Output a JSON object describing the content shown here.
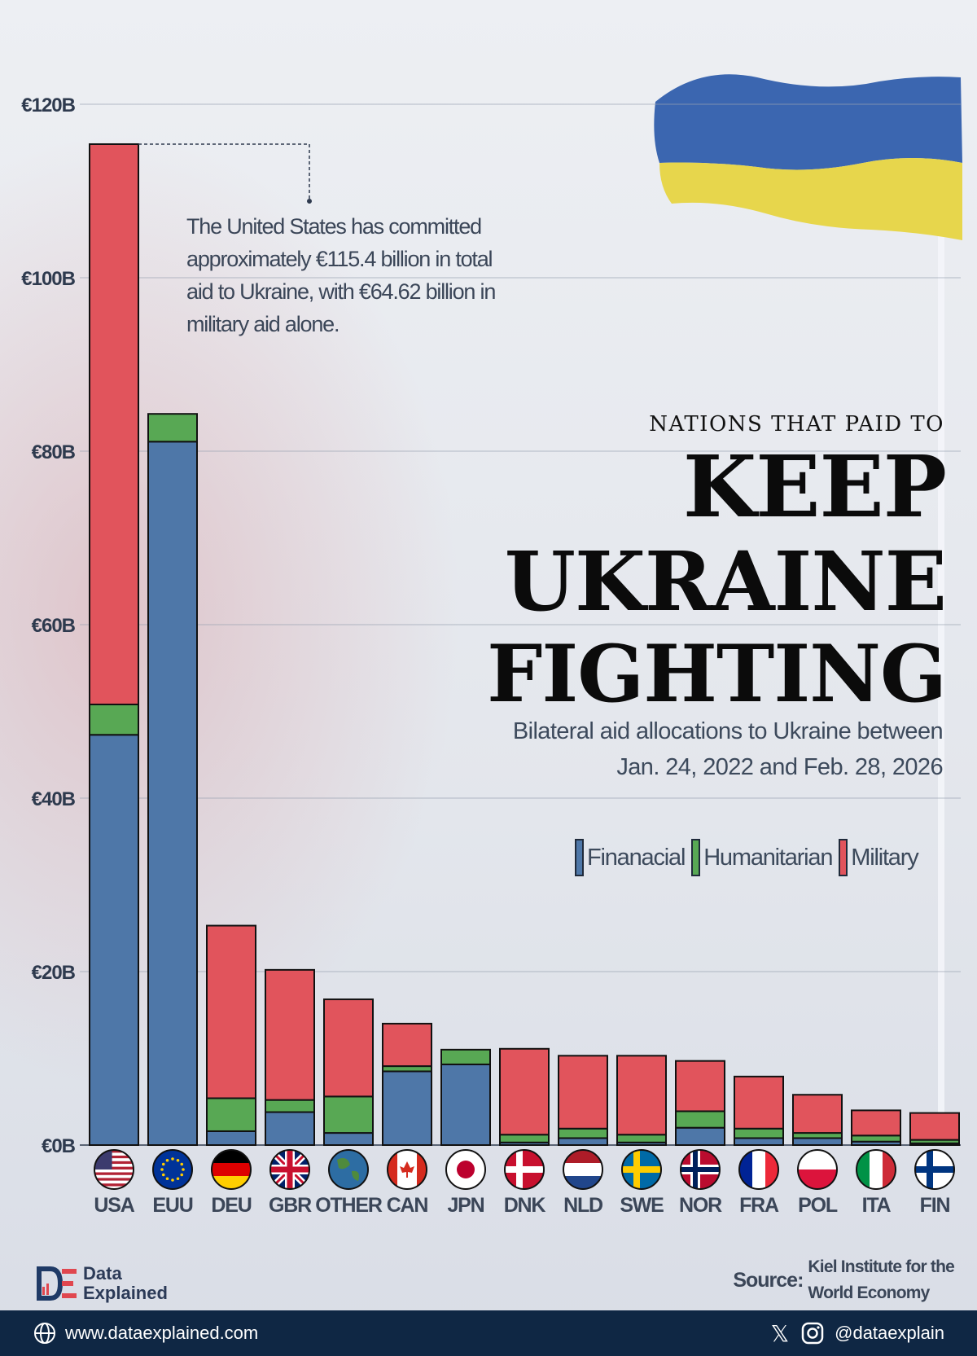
{
  "header": {
    "kicker": "NATIONS THAT PAID TO",
    "title_line1": "KEEP",
    "title_line2": "UKRAINE",
    "title_line3": "FIGHTING",
    "subtitle_line1": "Bilateral aid allocations to Ukraine between",
    "subtitle_line2": "Jan. 24, 2022 and Feb. 28, 2026"
  },
  "annotation": "The United States has committed approximately €115.4 billion in total aid to Ukraine, with €64.62 billion in military aid alone.",
  "legend": [
    {
      "label": "Finanacial",
      "color": "#4e77a8"
    },
    {
      "label": "Humanitarian",
      "color": "#58a854"
    },
    {
      "label": "Military",
      "color": "#e1545c"
    }
  ],
  "chart_data": {
    "type": "bar",
    "stacked": true,
    "categories": [
      "USA",
      "EUU",
      "DEU",
      "GBR",
      "OTHER",
      "CAN",
      "JPN",
      "DNK",
      "NLD",
      "SWE",
      "NOR",
      "FRA",
      "POL",
      "ITA",
      "FIN"
    ],
    "series": [
      {
        "name": "Finanacial",
        "color": "#4e77a8",
        "values": [
          47.3,
          81.1,
          1.6,
          3.8,
          1.4,
          8.5,
          9.3,
          0.3,
          0.8,
          0.3,
          2.0,
          0.8,
          0.8,
          0.4,
          0.2
        ]
      },
      {
        "name": "Humanitarian",
        "color": "#58a854",
        "values": [
          3.5,
          3.2,
          3.8,
          1.4,
          4.2,
          0.6,
          1.7,
          0.9,
          1.1,
          0.9,
          1.9,
          1.1,
          0.6,
          0.7,
          0.4
        ]
      },
      {
        "name": "Military",
        "color": "#e1545c",
        "values": [
          64.6,
          0,
          19.9,
          15.0,
          11.2,
          4.9,
          0,
          9.9,
          8.4,
          9.1,
          5.8,
          6.0,
          4.4,
          2.9,
          3.1
        ]
      }
    ],
    "ylim": [
      0,
      120
    ],
    "yticks": [
      "€0B",
      "€20B",
      "€40B",
      "€60B",
      "€80B",
      "€100B",
      "€120B"
    ],
    "ytick_values": [
      0,
      20,
      40,
      60,
      80,
      100,
      120
    ],
    "grid": true
  },
  "brand": {
    "line1": "Data",
    "line2": "Explained"
  },
  "source": {
    "label": "Source:",
    "line1": "Kiel Institute for the",
    "line2": "World Economy"
  },
  "footer": {
    "website": "www.dataexplained.com",
    "handle": "@dataexplain",
    "x_glyph": "𝕏"
  }
}
